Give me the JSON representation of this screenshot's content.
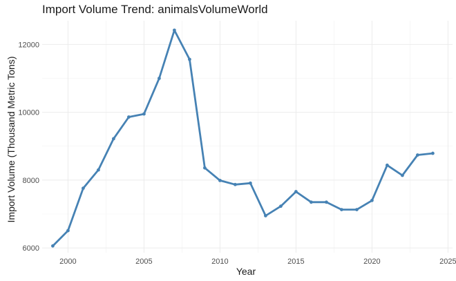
{
  "chart_data": {
    "type": "line",
    "title": "Import Volume Trend: animalsVolumeWorld",
    "xlabel": "Year",
    "ylabel": "Import Volume (Thousand Metric Tons)",
    "xlim": [
      1998.3,
      2025.3
    ],
    "ylim": [
      5860,
      12700
    ],
    "x_ticks": [
      2000,
      2005,
      2010,
      2015,
      2020,
      2025
    ],
    "x_tick_labels": [
      "2000",
      "2005",
      "2010",
      "2015",
      "2020",
      "2025"
    ],
    "y_ticks": [
      6000,
      8000,
      10000,
      12000
    ],
    "y_tick_labels": [
      "6000",
      "8000",
      "10000",
      "12000"
    ],
    "grid": true,
    "legend": "none",
    "line_color": "#4682b4",
    "series": [
      {
        "x": [
          1999,
          2000,
          2001,
          2002,
          2003,
          2004,
          2005,
          2006,
          2007,
          2008,
          2009,
          2010,
          2011,
          2012,
          2013,
          2014,
          2015,
          2016,
          2017,
          2018,
          2019,
          2020,
          2021,
          2022,
          2023,
          2024
        ],
        "values": [
          6060,
          6510,
          7760,
          8300,
          9220,
          9860,
          9950,
          11000,
          12420,
          11560,
          8360,
          7990,
          7870,
          7910,
          6950,
          7230,
          7660,
          7350,
          7350,
          7130,
          7130,
          7400,
          8440,
          8140,
          8740,
          8790
        ]
      }
    ]
  }
}
